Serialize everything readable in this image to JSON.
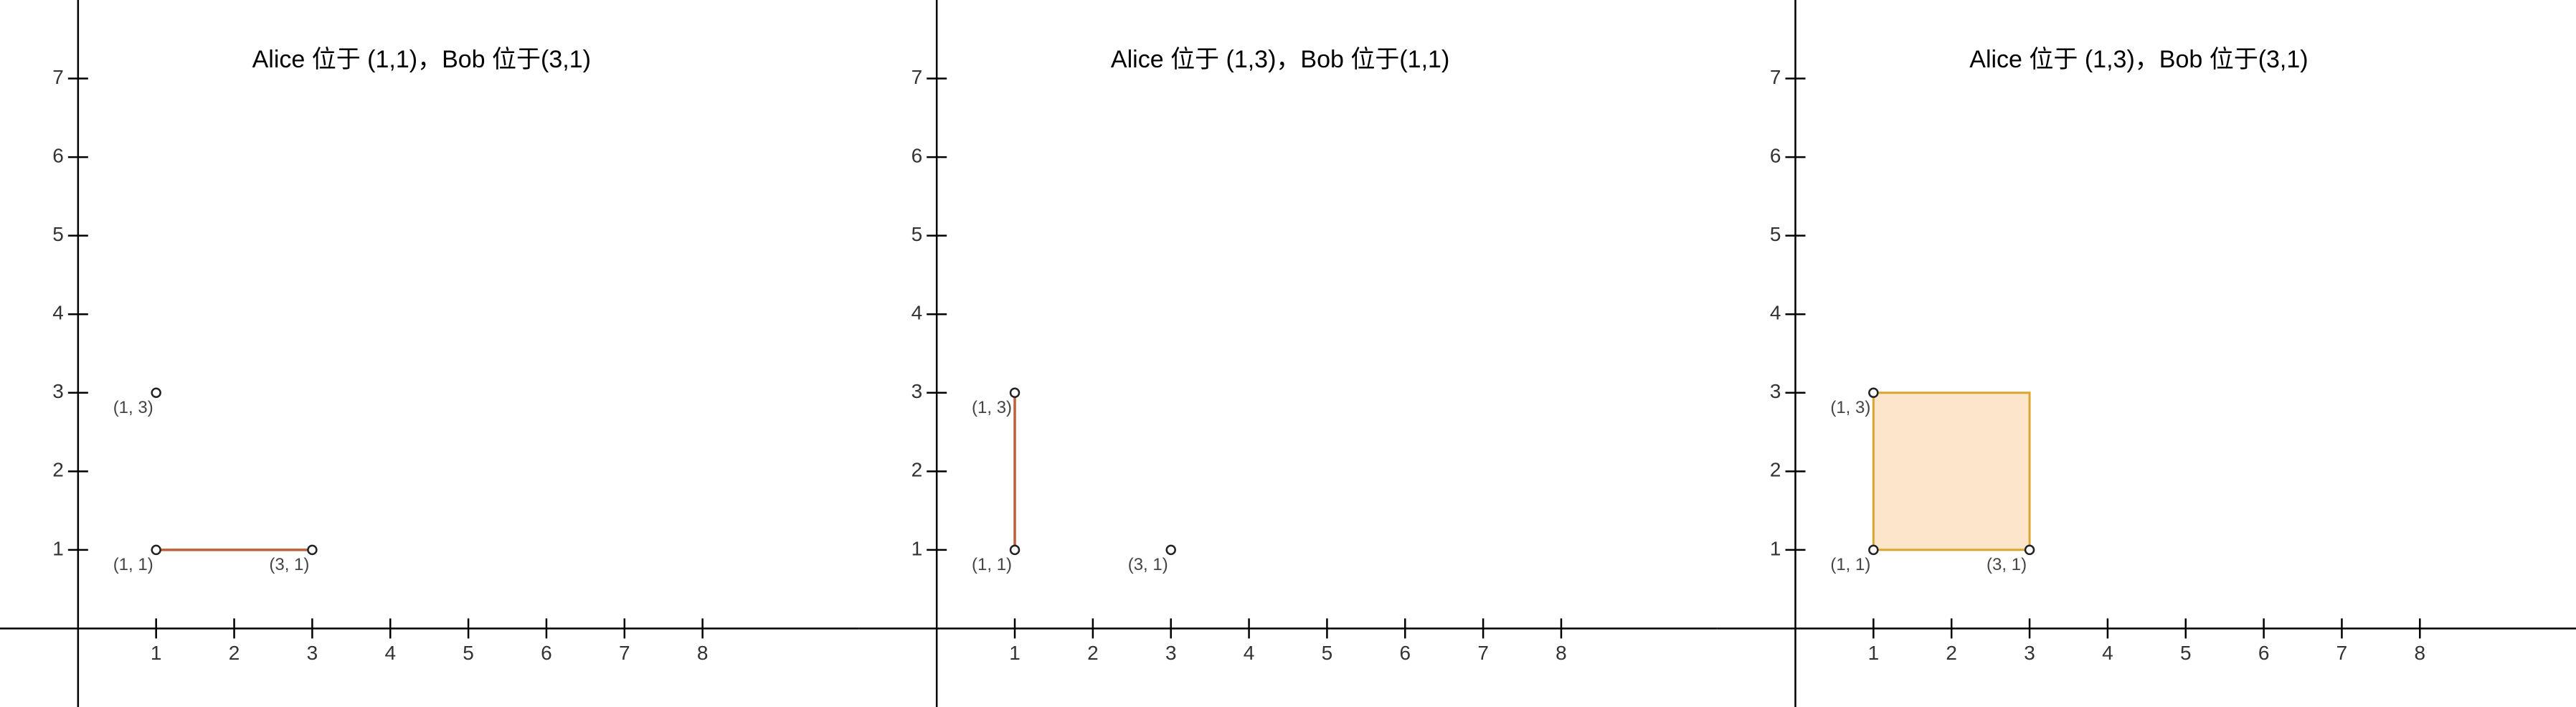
{
  "chart_data": [
    {
      "type": "scatter",
      "title": "Alice 位于 (1,1)，Bob 位于(3,1)",
      "x": [
        1,
        1,
        3
      ],
      "y": [
        3,
        1,
        1
      ],
      "point_labels": [
        "(1, 3)",
        "(1, 1)",
        "(3, 1)"
      ],
      "segment": {
        "x": [
          1,
          3
        ],
        "y": [
          1,
          1
        ],
        "color": "#c0603a"
      },
      "xlim": [
        -1,
        10
      ],
      "ylim": [
        -1,
        8
      ],
      "xticks": [
        1,
        2,
        3,
        4,
        5,
        6,
        7,
        8
      ],
      "yticks": [
        1,
        2,
        3,
        4,
        5,
        6,
        7
      ]
    },
    {
      "type": "scatter",
      "title": "Alice 位于 (1,3)，Bob 位于(1,1)",
      "x": [
        1,
        1,
        3
      ],
      "y": [
        3,
        1,
        1
      ],
      "point_labels": [
        "(1, 3)",
        "(1, 1)",
        "(3, 1)"
      ],
      "segment": {
        "x": [
          1,
          1
        ],
        "y": [
          1,
          3
        ],
        "color": "#c0603a"
      },
      "xlim": [
        -1,
        10
      ],
      "ylim": [
        -1,
        8
      ],
      "xticks": [
        1,
        2,
        3,
        4,
        5,
        6,
        7,
        8
      ],
      "yticks": [
        1,
        2,
        3,
        4,
        5,
        6,
        7
      ]
    },
    {
      "type": "scatter",
      "title": "Alice 位于 (1,3)，Bob 位于(3,1)",
      "x": [
        1,
        1,
        3
      ],
      "y": [
        3,
        1,
        1
      ],
      "point_labels": [
        "(1, 3)",
        "(1, 1)",
        "(3, 1)"
      ],
      "polygon": {
        "x": [
          1,
          1,
          3,
          3
        ],
        "y": [
          1,
          3,
          3,
          1
        ],
        "fill": "#fde5cc",
        "stroke": "#d9a530"
      },
      "xlim": [
        -1,
        10
      ],
      "ylim": [
        -1,
        8
      ],
      "xticks": [
        1,
        2,
        3,
        4,
        5,
        6,
        7,
        8
      ],
      "yticks": [
        1,
        2,
        3,
        4,
        5,
        6,
        7
      ]
    }
  ]
}
